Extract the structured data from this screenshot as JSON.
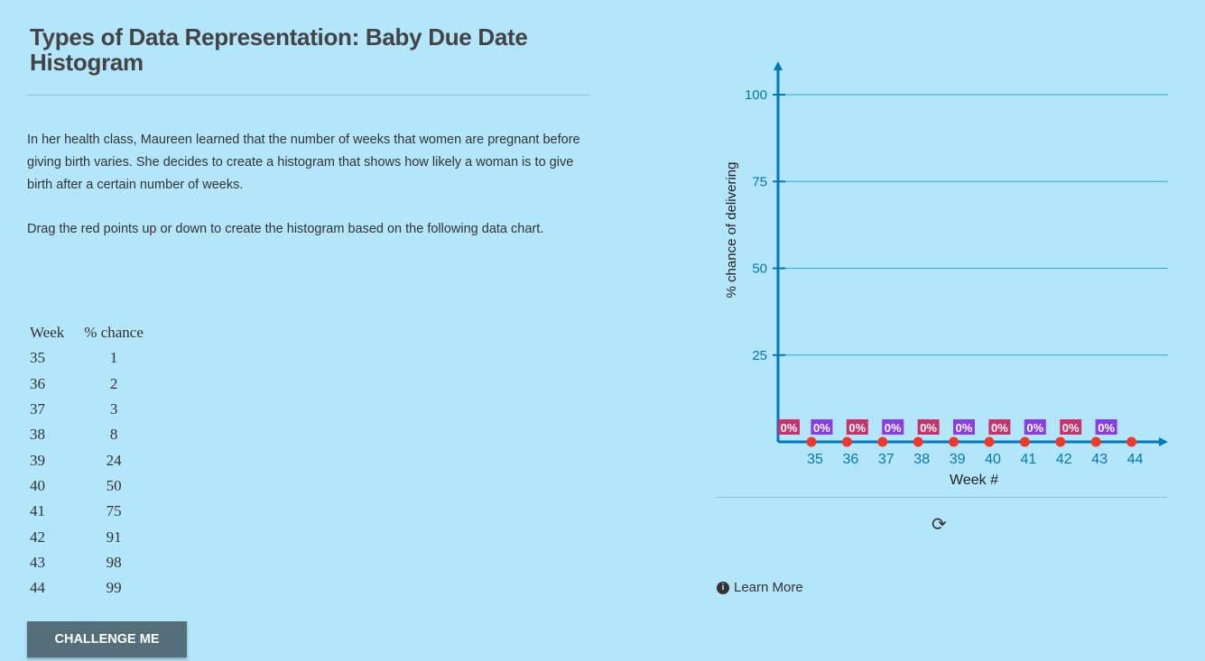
{
  "title": "Types of Data Representation: Baby Due Date Histogram",
  "intro": "In her health class, Maureen learned that the number of weeks that women are pregnant before giving birth varies. She decides to create a histogram that shows how likely a woman is to give birth after a certain number of weeks.",
  "instructions": "Drag the red points up or down to create the histogram based on the following data chart.",
  "table": {
    "headers": [
      "Week",
      "% chance"
    ],
    "rows": [
      [
        "35",
        "1"
      ],
      [
        "36",
        "2"
      ],
      [
        "37",
        "3"
      ],
      [
        "38",
        "8"
      ],
      [
        "39",
        "24"
      ],
      [
        "40",
        "50"
      ],
      [
        "41",
        "75"
      ],
      [
        "42",
        "91"
      ],
      [
        "43",
        "98"
      ],
      [
        "44",
        "99"
      ]
    ]
  },
  "challenge_label": "CHALLENGE ME",
  "learn_more_label": "Learn More",
  "icons": {
    "reset": "refresh-icon",
    "info": "info-icon"
  },
  "chart_data": {
    "type": "bar",
    "xlabel": "Week #",
    "ylabel": "% chance of delivering",
    "categories": [
      "35",
      "36",
      "37",
      "38",
      "39",
      "40",
      "41",
      "42",
      "43",
      "44"
    ],
    "values": [
      0,
      0,
      0,
      0,
      0,
      0,
      0,
      0,
      0,
      0
    ],
    "value_labels": [
      "0%",
      "0%",
      "0%",
      "0%",
      "0%",
      "0%",
      "0%",
      "0%",
      "0%",
      "0%"
    ],
    "yticks": [
      25,
      50,
      75,
      100
    ],
    "ytick_labels": [
      "25",
      "50",
      "75",
      "100"
    ],
    "ylim": [
      0,
      100
    ],
    "grid": true,
    "colors": {
      "axis": "#0277bd",
      "grid": "#29a8e0",
      "point": "#f2382b",
      "label_a": "#c9326b",
      "label_b": "#8a3ce6"
    }
  }
}
